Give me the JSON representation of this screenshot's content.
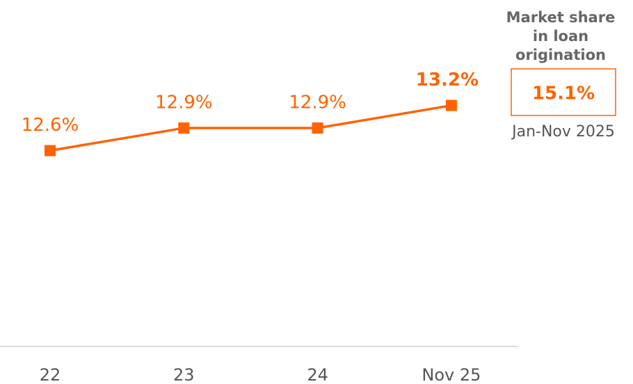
{
  "chart_data": {
    "type": "line",
    "categories": [
      "22",
      "23",
      "24",
      "Nov 25"
    ],
    "series": [
      {
        "color": "#ff6200",
        "values": [
          12.6,
          12.9,
          12.9,
          13.2
        ],
        "value_labels": [
          "12.6%",
          "12.9%",
          "12.9%",
          "13.2%"
        ]
      }
    ],
    "ylim": [
      10,
      14.6
    ],
    "annotation": {
      "title": "Market share in loan origination",
      "value": 15.1,
      "value_label": "15.1%",
      "period": "Jan-Nov 2025"
    }
  }
}
